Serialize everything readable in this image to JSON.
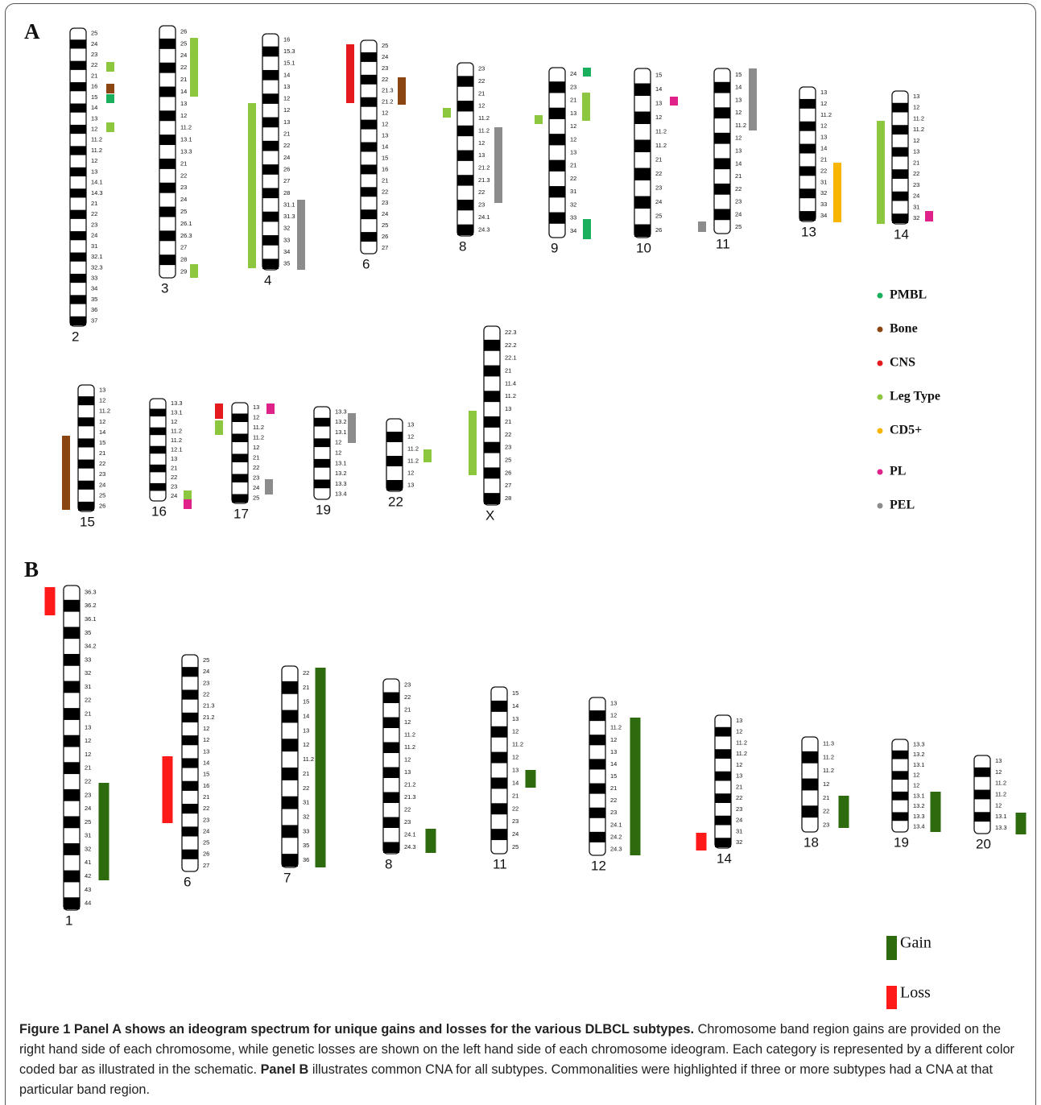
{
  "panel_a": {
    "label": "A",
    "chromosomes": [
      {
        "name": "2",
        "bands": [
          "25",
          "24",
          "23",
          "22",
          "21",
          "16",
          "15",
          "14",
          "13",
          "12",
          "11.2",
          "11.2",
          "12",
          "13",
          "14.1",
          "14.3",
          "21",
          "22",
          "23",
          "24",
          "31",
          "32.1",
          "32.3",
          "33",
          "34",
          "35",
          "36",
          "37"
        ]
      },
      {
        "name": "3",
        "bands": [
          "26",
          "25",
          "24",
          "22",
          "21",
          "14",
          "13",
          "12",
          "11.2",
          "13.1",
          "13.3",
          "21",
          "22",
          "23",
          "24",
          "25",
          "26.1",
          "26.3",
          "27",
          "28",
          "29"
        ]
      },
      {
        "name": "4",
        "bands": [
          "16",
          "15.3",
          "15.1",
          "14",
          "13",
          "12",
          "12",
          "13",
          "21",
          "22",
          "24",
          "26",
          "27",
          "28",
          "31.1",
          "31.3",
          "32",
          "33",
          "34",
          "35"
        ]
      },
      {
        "name": "6",
        "bands": [
          "25",
          "24",
          "23",
          "22",
          "21.3",
          "21.2",
          "12",
          "12",
          "13",
          "14",
          "15",
          "16",
          "21",
          "22",
          "23",
          "24",
          "25",
          "26",
          "27"
        ]
      },
      {
        "name": "8",
        "bands": [
          "23",
          "22",
          "21",
          "12",
          "11.2",
          "11.2",
          "12",
          "13",
          "21.2",
          "21.3",
          "22",
          "23",
          "24.1",
          "24.3"
        ]
      },
      {
        "name": "9",
        "bands": [
          "24",
          "23",
          "21",
          "13",
          "12",
          "12",
          "13",
          "21",
          "22",
          "31",
          "32",
          "33",
          "34"
        ]
      },
      {
        "name": "10",
        "bands": [
          "15",
          "14",
          "13",
          "12",
          "11.2",
          "11.2",
          "21",
          "22",
          "23",
          "24",
          "25",
          "26"
        ]
      },
      {
        "name": "11",
        "bands": [
          "15",
          "14",
          "13",
          "12",
          "11.2",
          "12",
          "13",
          "14",
          "21",
          "22",
          "23",
          "24",
          "25"
        ]
      },
      {
        "name": "13",
        "bands": [
          "13",
          "12",
          "11.2",
          "12",
          "13",
          "14",
          "21",
          "22",
          "31",
          "32",
          "33",
          "34"
        ]
      },
      {
        "name": "14",
        "bands": [
          "13",
          "12",
          "11.2",
          "11.2",
          "12",
          "13",
          "21",
          "22",
          "23",
          "24",
          "31",
          "32"
        ]
      },
      {
        "name": "15",
        "bands": [
          "13",
          "12",
          "11.2",
          "12",
          "14",
          "15",
          "21",
          "22",
          "23",
          "24",
          "25",
          "26"
        ]
      },
      {
        "name": "16",
        "bands": [
          "13.3",
          "13.1",
          "12",
          "11.2",
          "11.2",
          "12.1",
          "13",
          "21",
          "22",
          "23",
          "24"
        ]
      },
      {
        "name": "17",
        "bands": [
          "13",
          "12",
          "11.2",
          "11.2",
          "12",
          "21",
          "22",
          "23",
          "24",
          "25"
        ]
      },
      {
        "name": "19",
        "bands": [
          "13.3",
          "13.2",
          "13.1",
          "12",
          "12",
          "13.1",
          "13.2",
          "13.3",
          "13.4"
        ]
      },
      {
        "name": "22",
        "bands": [
          "13",
          "12",
          "11.2",
          "11.2",
          "12",
          "13"
        ]
      },
      {
        "name": "X",
        "bands": [
          "22.3",
          "22.2",
          "22.1",
          "21",
          "11.4",
          "11.2",
          "13",
          "21",
          "22",
          "23",
          "25",
          "26",
          "27",
          "28"
        ]
      }
    ],
    "legend": [
      {
        "label": "PMBL",
        "color": "#1aaf5d"
      },
      {
        "label": "Bone",
        "color": "#8b4513"
      },
      {
        "label": "CNS",
        "color": "#e41a1c"
      },
      {
        "label": "Leg Type",
        "color": "#8dc63f"
      },
      {
        "label": "CD5+",
        "color": "#f7b500"
      },
      {
        "label": "PL",
        "color": "#e0218a"
      },
      {
        "label": "PEL",
        "color": "#8c8c8c"
      }
    ]
  },
  "panel_b": {
    "label": "B",
    "chromosomes": [
      {
        "name": "1",
        "bands": [
          "36.3",
          "36.2",
          "36.1",
          "35",
          "34.2",
          "33",
          "32",
          "31",
          "22",
          "21",
          "13",
          "12",
          "12",
          "21",
          "22",
          "23",
          "24",
          "25",
          "31",
          "32",
          "41",
          "42",
          "43",
          "44"
        ]
      },
      {
        "name": "6",
        "bands": [
          "25",
          "24",
          "23",
          "22",
          "21.3",
          "21.2",
          "12",
          "12",
          "13",
          "14",
          "15",
          "16",
          "21",
          "22",
          "23",
          "24",
          "25",
          "26",
          "27"
        ]
      },
      {
        "name": "7",
        "bands": [
          "22",
          "21",
          "15",
          "14",
          "13",
          "12",
          "11.2",
          "21",
          "22",
          "31",
          "32",
          "33",
          "35",
          "36"
        ]
      },
      {
        "name": "8",
        "bands": [
          "23",
          "22",
          "21",
          "12",
          "11.2",
          "11.2",
          "12",
          "13",
          "21.2",
          "21.3",
          "22",
          "23",
          "24.1",
          "24.3"
        ]
      },
      {
        "name": "11",
        "bands": [
          "15",
          "14",
          "13",
          "12",
          "11.2",
          "12",
          "13",
          "14",
          "21",
          "22",
          "23",
          "24",
          "25"
        ]
      },
      {
        "name": "12",
        "bands": [
          "13",
          "12",
          "11.2",
          "12",
          "13",
          "14",
          "15",
          "21",
          "22",
          "23",
          "24.1",
          "24.2",
          "24.3"
        ]
      },
      {
        "name": "14",
        "bands": [
          "13",
          "12",
          "11.2",
          "11.2",
          "12",
          "13",
          "21",
          "22",
          "23",
          "24",
          "31",
          "32"
        ]
      },
      {
        "name": "18",
        "bands": [
          "11.3",
          "11.2",
          "11.2",
          "12",
          "21",
          "22",
          "23"
        ]
      },
      {
        "name": "19",
        "bands": [
          "13.3",
          "13.2",
          "13.1",
          "12",
          "12",
          "13.1",
          "13.2",
          "13.3",
          "13.4"
        ]
      },
      {
        "name": "20",
        "bands": [
          "13",
          "12",
          "11.2",
          "11.2",
          "12",
          "13.1",
          "13.3"
        ]
      }
    ],
    "legend": [
      {
        "label": "Gain",
        "color": "#2e6b0e"
      },
      {
        "label": "Loss",
        "color": "#ff1a1a"
      }
    ]
  },
  "caption": {
    "lead": "Figure 1 Panel A shows an ideogram spectrum for unique gains and losses for the various DLBCL subtypes.",
    "text1": "Chromosome band region gains are provided on the right hand side of each chromosome, while genetic losses are shown on the left hand side of each chromosome ideogram. Each category is represented by a different color coded bar as illustrated in the schematic.",
    "bold2": "Panel B",
    "text2": "illustrates common CNA for all subtypes. Commonalities were highlighted if three or more subtypes had a CNA at that particular band region."
  }
}
